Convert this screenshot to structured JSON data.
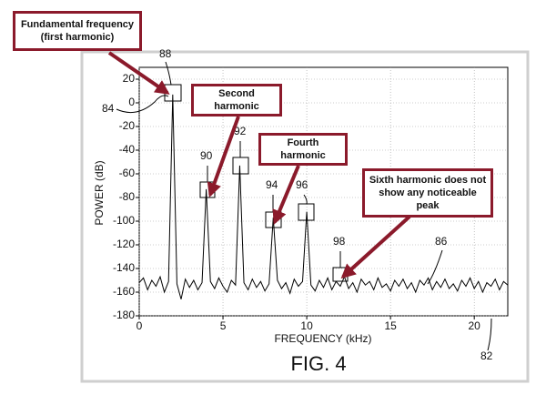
{
  "chart_data": {
    "type": "line",
    "title": "FIG. 4",
    "x_label": "FREQUENCY (kHz)",
    "y_label": "POWER (dB)",
    "x": [
      0,
      0.25,
      0.5,
      0.75,
      1,
      1.25,
      1.5,
      1.75,
      2,
      2.25,
      2.5,
      2.75,
      3,
      3.25,
      3.5,
      3.75,
      4,
      4.25,
      4.5,
      4.75,
      5,
      5.25,
      5.5,
      5.75,
      6,
      6.25,
      6.5,
      6.75,
      7,
      7.25,
      7.5,
      7.75,
      8,
      8.25,
      8.5,
      8.75,
      9,
      9.25,
      9.5,
      9.75,
      10,
      10.25,
      10.5,
      10.75,
      11,
      11.25,
      11.5,
      11.75,
      12,
      12.25,
      12.5,
      12.75,
      13,
      13.25,
      13.5,
      13.75,
      14,
      14.25,
      14.5,
      14.75,
      15,
      15.25,
      15.5,
      15.75,
      16,
      16.25,
      16.5,
      16.75,
      17,
      17.25,
      17.5,
      17.75,
      18,
      18.25,
      18.5,
      18.75,
      19,
      19.25,
      19.5,
      19.75,
      20,
      20.25,
      20.5,
      20.75,
      21,
      21.25,
      21.5,
      21.75,
      22
    ],
    "values": [
      -152,
      -148,
      -158,
      -150,
      -155,
      -147,
      -160,
      -151,
      7,
      -153,
      -166,
      -149,
      -156,
      -150,
      -158,
      -152,
      -73,
      -151,
      -157,
      -148,
      -155,
      -160,
      -150,
      -154,
      -53,
      -152,
      -158,
      -149,
      -156,
      -151,
      -159,
      -153,
      -97,
      -150,
      -157,
      -152,
      -161,
      -149,
      -155,
      -151,
      -92,
      -154,
      -159,
      -150,
      -156,
      -148,
      -158,
      -151,
      -155,
      -147,
      -157,
      -152,
      -160,
      -149,
      -154,
      -151,
      -158,
      -148,
      -156,
      -153,
      -159,
      -150,
      -155,
      -149,
      -157,
      -152,
      -160,
      -150,
      -154,
      -148,
      -158,
      -151,
      -156,
      -149,
      -157,
      -153,
      -159,
      -150,
      -155,
      -148,
      -157,
      -151,
      -160,
      -152,
      -155,
      -149,
      -158,
      -151,
      -154
    ],
    "color": "#000000",
    "xlim": [
      0,
      22
    ],
    "xticks": [
      0,
      5,
      10,
      15,
      20
    ],
    "ylim": [
      -180,
      30
    ],
    "yticks": [
      20,
      0,
      -20,
      -40,
      -60,
      -80,
      -100,
      -120,
      -140,
      -160,
      -180
    ],
    "grid": true,
    "reference_numerals": [
      "88",
      "84",
      "90",
      "92",
      "94",
      "96",
      "98",
      "86",
      "82"
    ],
    "callouts": [
      "Fundamental frequency (first harmonic)",
      "Second harmonic",
      "Fourth harmonic",
      "Sixth harmonic does not show any noticeable peak"
    ]
  }
}
